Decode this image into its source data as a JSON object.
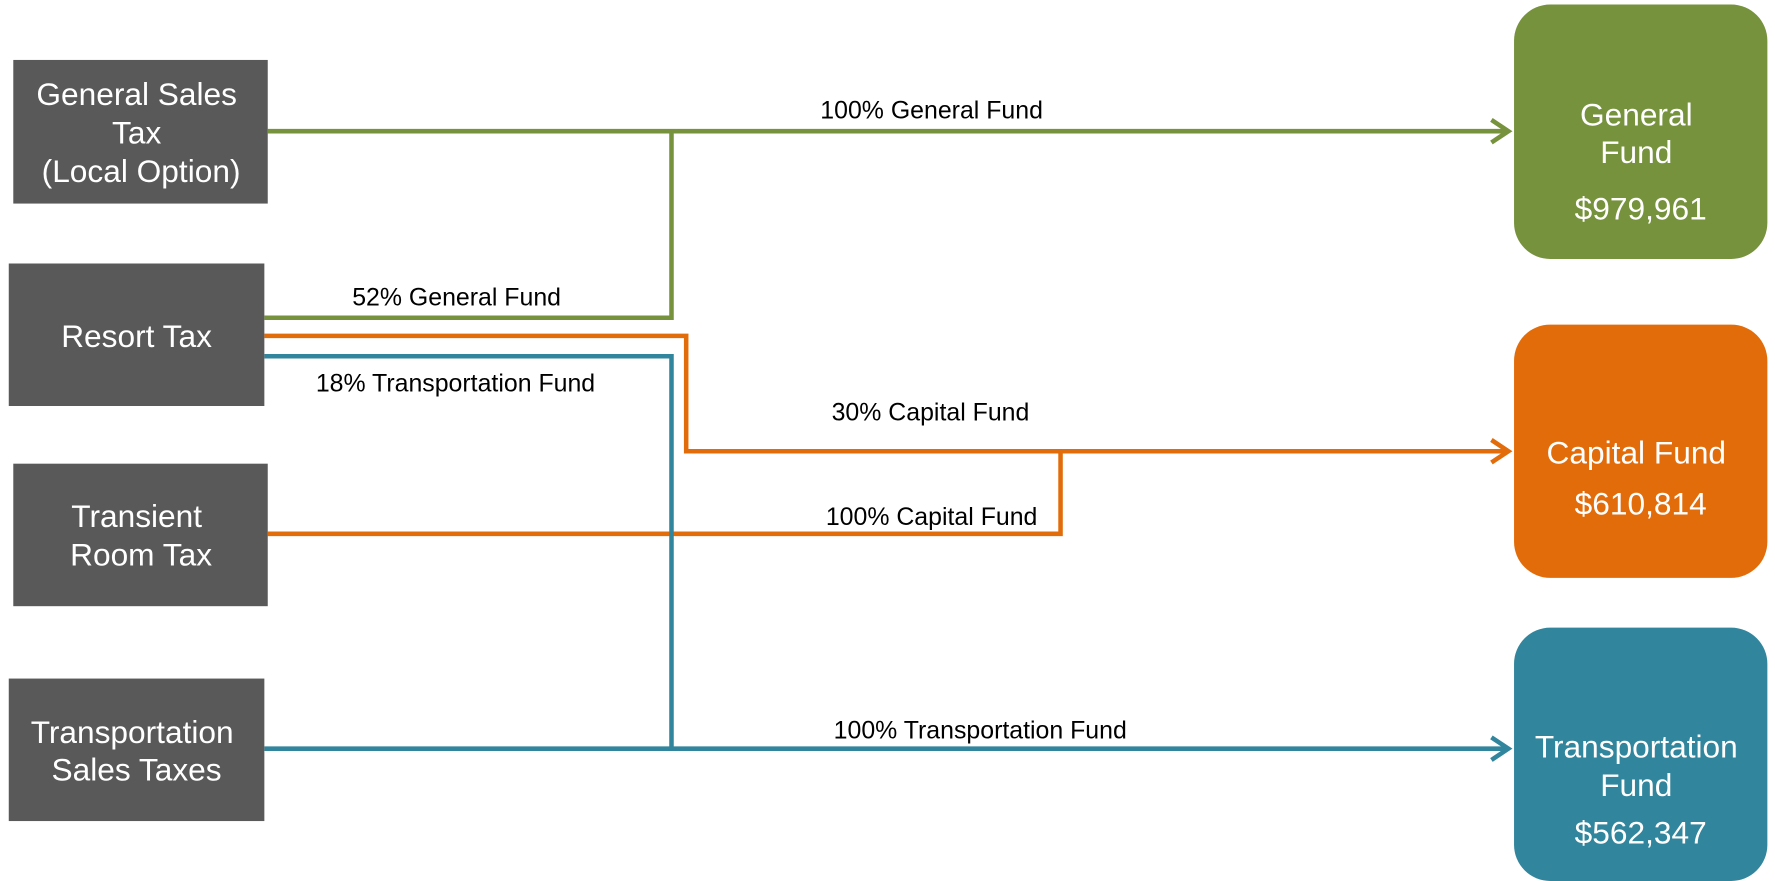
{
  "sources": [
    {
      "lines": [
        "General Sales",
        "Tax",
        "(Local Option)"
      ]
    },
    {
      "lines": [
        "Resort Tax"
      ]
    },
    {
      "lines": [
        "Transient",
        "Room Tax"
      ]
    },
    {
      "lines": [
        "Transportation",
        "Sales Taxes"
      ]
    }
  ],
  "funds": [
    {
      "lines": [
        "General",
        "Fund"
      ],
      "amount": "$979,961"
    },
    {
      "lines": [
        "Capital Fund"
      ],
      "amount": "$610,814"
    },
    {
      "lines": [
        "Transportation",
        "Fund"
      ],
      "amount": "$562,347"
    }
  ],
  "flows": [
    {
      "label": "100% General Fund"
    },
    {
      "label": "52% General Fund"
    },
    {
      "label": "18% Transportation Fund"
    },
    {
      "label": "30% Capital Fund"
    },
    {
      "label": "100% Capital Fund"
    },
    {
      "label": "100% Transportation Fund"
    }
  ]
}
